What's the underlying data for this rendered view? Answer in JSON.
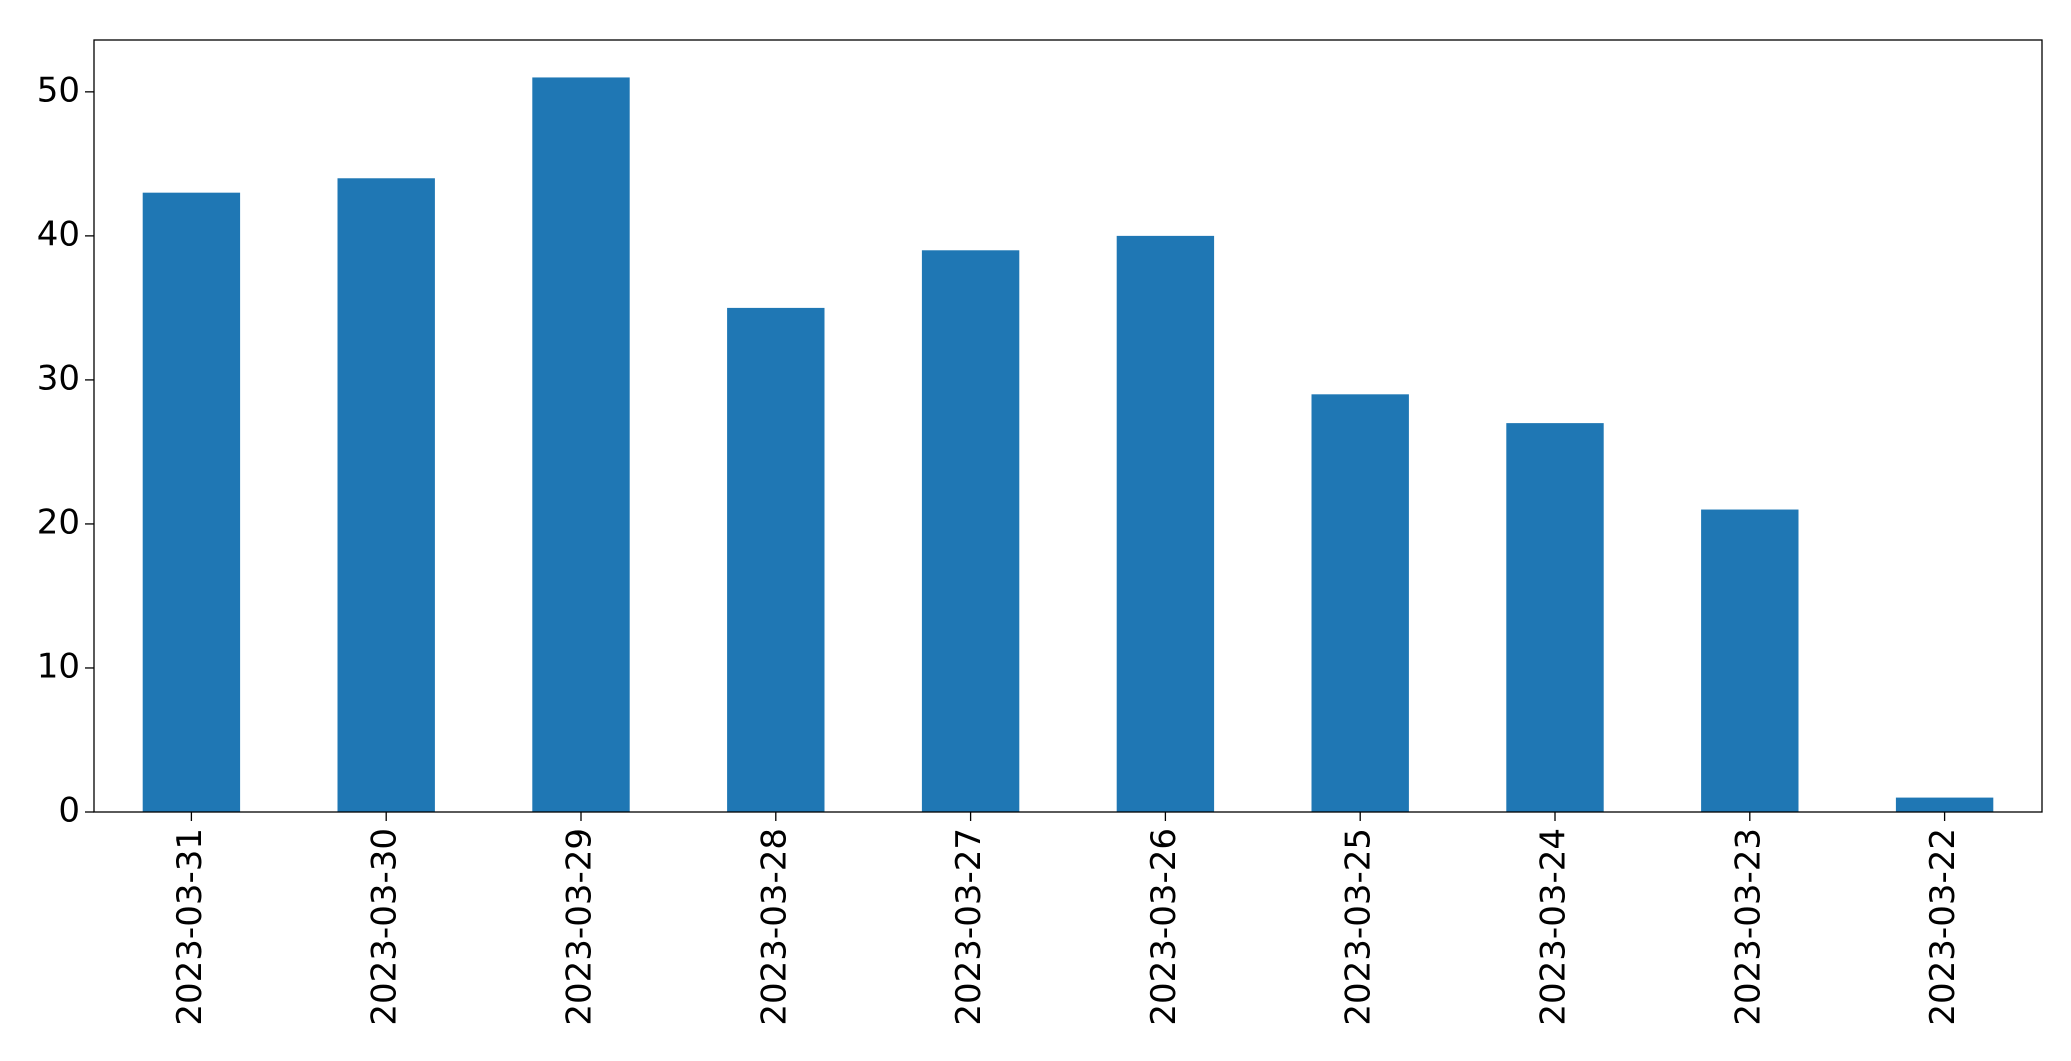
{
  "chart_data": {
    "type": "bar",
    "categories": [
      "2023-03-31",
      "2023-03-30",
      "2023-03-29",
      "2023-03-28",
      "2023-03-27",
      "2023-03-26",
      "2023-03-25",
      "2023-03-24",
      "2023-03-23",
      "2023-03-22"
    ],
    "values": [
      43,
      44,
      51,
      35,
      39,
      40,
      29,
      27,
      21,
      1
    ],
    "color": "#1f77b4",
    "ylim": [
      0,
      53.6
    ],
    "yticks": [
      0,
      10,
      20,
      30,
      40,
      50
    ],
    "grid": false
  }
}
